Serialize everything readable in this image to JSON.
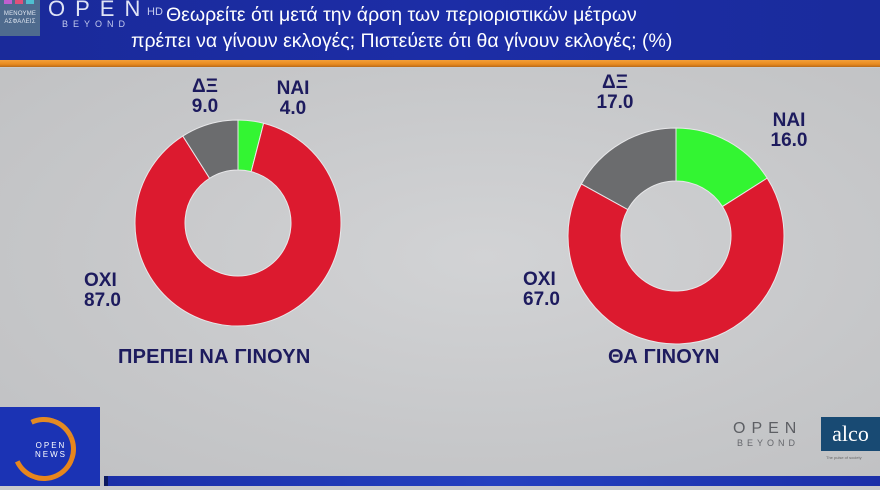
{
  "header": {
    "badge_text": "ΜΕΝΟΥΜΕ ΑΣΦΑΛΕΙΣ",
    "badge_dot_colors": [
      "#c05fd0",
      "#e0507a",
      "#4fc0d0"
    ],
    "channel_logo": "OPEN",
    "channel_sub": "BEYOND",
    "hd": "HD",
    "title_line1": "Θεωρείτε ότι μετά την άρση των περιοριστικών μέτρων",
    "title_line2": "πρέπει να γίνουν εκλογές; Πιστεύετε ότι θα γίνουν εκλογές; (%)"
  },
  "colors": {
    "header_bg": "#1c2da6",
    "stripe": "#e88a1f",
    "oxi": "#dc1a2f",
    "nai": "#33f532",
    "dk": "#6b6c6e",
    "label_text": "#1d1b5e"
  },
  "charts": [
    {
      "title": "ΠΡΕΠΕΙ ΝΑ ΓΙΝΟΥΝ",
      "segments": [
        {
          "label": "ΝΑΙ",
          "value": "4.0"
        },
        {
          "label": "ΟΧΙ",
          "value": "87.0"
        },
        {
          "label": "ΔΞ",
          "value": "9.0"
        }
      ]
    },
    {
      "title": "ΘΑ ΓΙΝΟΥΝ",
      "segments": [
        {
          "label": "ΝΑΙ",
          "value": "16.0"
        },
        {
          "label": "ΟΧΙ",
          "value": "67.0"
        },
        {
          "label": "ΔΞ",
          "value": "17.0"
        }
      ]
    }
  ],
  "chart_data": [
    {
      "type": "pie",
      "title": "ΠΡΕΠΕΙ ΝΑ ΓΙΝΟΥΝ",
      "subtitle": "Θεωρείτε ότι μετά την άρση των περιοριστικών μέτρων πρέπει να γίνουν εκλογές; (%)",
      "categories": [
        "ΝΑΙ",
        "ΟΧΙ",
        "ΔΞ"
      ],
      "values": [
        4.0,
        87.0,
        9.0
      ],
      "colors": [
        "#33f532",
        "#dc1a2f",
        "#6b6c6e"
      ],
      "donut": true
    },
    {
      "type": "pie",
      "title": "ΘΑ ΓΙΝΟΥΝ",
      "subtitle": "Πιστεύετε ότι θα γίνουν εκλογές; (%)",
      "categories": [
        "ΝΑΙ",
        "ΟΧΙ",
        "ΔΞ"
      ],
      "values": [
        16.0,
        67.0,
        17.0
      ],
      "colors": [
        "#33f532",
        "#dc1a2f",
        "#6b6c6e"
      ],
      "donut": true
    }
  ],
  "footer": {
    "news_logo_line1": "OPEN",
    "news_logo_line2": "NEWS",
    "brand_open": "OPEN",
    "brand_open_sub": "BEYOND",
    "pollster": "alco",
    "pollster_tagline": "The pulse of society"
  }
}
